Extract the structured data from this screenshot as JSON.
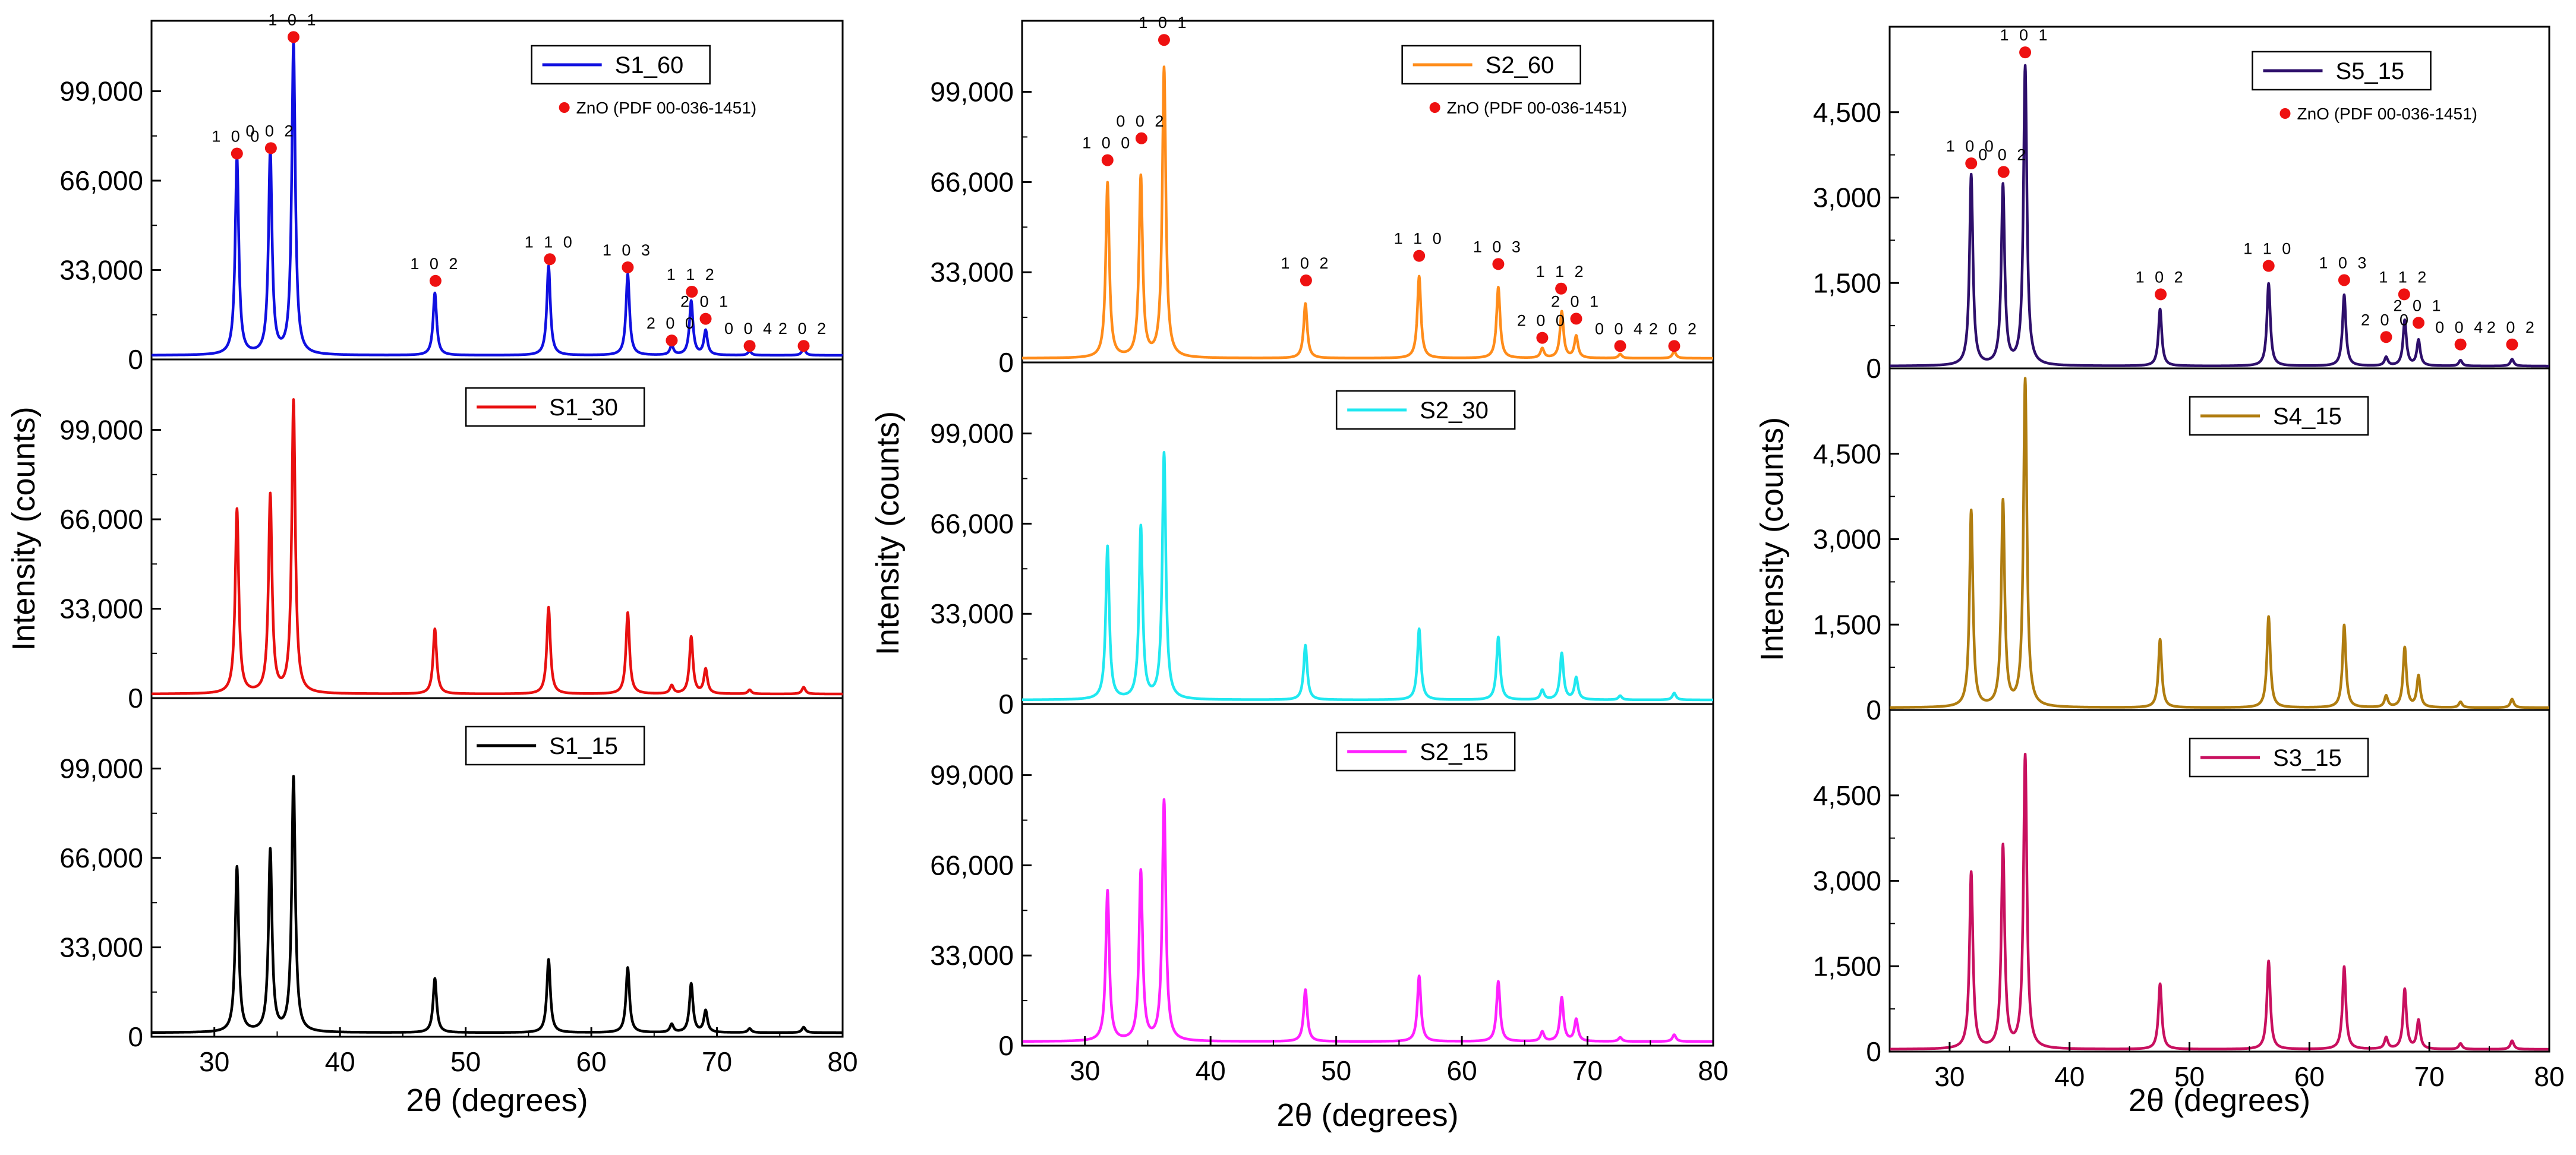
{
  "figure": {
    "x_axis_title": "2θ (degrees)",
    "y_axis_title": "Intensity (counts)",
    "reference_label": "ZnO (PDF 00-036-1451)"
  },
  "chart_data": [
    {
      "id": "column-1",
      "type": "line",
      "xlim": [
        25,
        80
      ],
      "xticks": [
        30,
        40,
        50,
        60,
        70,
        80
      ],
      "xlabel": "2θ (degrees)",
      "ylabel": "Intensity (counts)",
      "panels": [
        {
          "sample": "S1_60",
          "color": "#1010e0",
          "ylim": [
            0,
            125000
          ],
          "yticks": [
            0,
            33000,
            66000,
            99000
          ],
          "ytick_labels": [
            "0",
            "33,000",
            "66,000",
            "99,000"
          ],
          "baseline": 1500,
          "peaks": [
            [
              31.8,
              73000
            ],
            [
              34.45,
              75000
            ],
            [
              36.3,
              115000
            ],
            [
              47.55,
              23000
            ],
            [
              56.6,
              33000
            ],
            [
              62.9,
              30000
            ],
            [
              66.4,
              3500
            ],
            [
              67.95,
              20000
            ],
            [
              69.1,
              9000
            ],
            [
              72.6,
              1500
            ],
            [
              76.9,
              2500
            ]
          ],
          "legend_position": "top-right",
          "reflections": [
            {
              "hkl": "1 0 0",
              "x": 31.8,
              "y": 76000
            },
            {
              "hkl": "0 0 2",
              "x": 34.5,
              "y": 78000
            },
            {
              "hkl": "1 0 1",
              "x": 36.3,
              "y": 119000
            },
            {
              "hkl": "1 0 2",
              "x": 47.6,
              "y": 29000
            },
            {
              "hkl": "1 1 0",
              "x": 56.7,
              "y": 37000
            },
            {
              "hkl": "1 0 3",
              "x": 62.9,
              "y": 34000
            },
            {
              "hkl": "2 0 0",
              "x": 66.4,
              "y": 7000
            },
            {
              "hkl": "1 1 2",
              "x": 68.0,
              "y": 25000
            },
            {
              "hkl": "2 0 1",
              "x": 69.1,
              "y": 15000
            },
            {
              "hkl": "0 0 4",
              "x": 72.6,
              "y": 5000
            },
            {
              "hkl": "2 0 2",
              "x": 76.9,
              "y": 5000
            }
          ]
        },
        {
          "sample": "S1_30",
          "color": "#e81010",
          "ylim": [
            0,
            125000
          ],
          "yticks": [
            0,
            33000,
            66000,
            99000
          ],
          "ytick_labels": [
            "0",
            "33,000",
            "66,000",
            "99,000"
          ],
          "baseline": 1500,
          "peaks": [
            [
              31.8,
              68000
            ],
            [
              34.45,
              73000
            ],
            [
              36.3,
              108000
            ],
            [
              47.55,
              24000
            ],
            [
              56.6,
              32000
            ],
            [
              62.9,
              30000
            ],
            [
              66.4,
              3000
            ],
            [
              67.95,
              21000
            ],
            [
              69.1,
              9000
            ],
            [
              72.6,
              1500
            ],
            [
              76.9,
              2500
            ]
          ],
          "legend_position": "top-center"
        },
        {
          "sample": "S1_15",
          "color": "#000000",
          "ylim": [
            0,
            125000
          ],
          "yticks": [
            0,
            33000,
            66000,
            99000
          ],
          "ytick_labels": [
            "0",
            "33,000",
            "66,000",
            "99,000"
          ],
          "baseline": 1500,
          "peaks": [
            [
              31.8,
              61000
            ],
            [
              34.45,
              67000
            ],
            [
              36.3,
              94000
            ],
            [
              47.55,
              20000
            ],
            [
              56.6,
              27000
            ],
            [
              62.9,
              24000
            ],
            [
              66.4,
              3000
            ],
            [
              67.95,
              18000
            ],
            [
              69.1,
              8000
            ],
            [
              72.6,
              1500
            ],
            [
              76.9,
              2000
            ]
          ],
          "legend_position": "top-center"
        }
      ]
    },
    {
      "id": "column-2",
      "type": "line",
      "xlim": [
        25,
        80
      ],
      "xticks": [
        30,
        40,
        50,
        60,
        70,
        80
      ],
      "xlabel": "2θ (degrees)",
      "ylabel": "Intensity (counts)",
      "panels": [
        {
          "sample": "S2_60",
          "color": "#ff8c1a",
          "ylim": [
            0,
            125000
          ],
          "yticks": [
            0,
            33000,
            66000,
            99000
          ],
          "ytick_labels": [
            "0",
            "33,000",
            "66,000",
            "99,000"
          ],
          "baseline": 1500,
          "peaks": [
            [
              31.8,
              64000
            ],
            [
              34.45,
              66000
            ],
            [
              36.3,
              106000
            ],
            [
              47.55,
              20000
            ],
            [
              56.6,
              30000
            ],
            [
              62.9,
              26000
            ],
            [
              66.4,
              3500
            ],
            [
              67.95,
              17000
            ],
            [
              69.1,
              8000
            ],
            [
              72.6,
              1500
            ],
            [
              76.9,
              2500
            ]
          ],
          "legend_position": "top-right",
          "reflections": [
            {
              "hkl": "1 0 0",
              "x": 31.8,
              "y": 74000
            },
            {
              "hkl": "0 0 2",
              "x": 34.5,
              "y": 82000
            },
            {
              "hkl": "1 0 1",
              "x": 36.3,
              "y": 118000
            },
            {
              "hkl": "1 0 2",
              "x": 47.6,
              "y": 30000
            },
            {
              "hkl": "1 1 0",
              "x": 56.6,
              "y": 39000
            },
            {
              "hkl": "1 0 3",
              "x": 62.9,
              "y": 36000
            },
            {
              "hkl": "2 0 0",
              "x": 66.4,
              "y": 9000
            },
            {
              "hkl": "1 1 2",
              "x": 67.9,
              "y": 27000
            },
            {
              "hkl": "2 0 1",
              "x": 69.1,
              "y": 16000
            },
            {
              "hkl": "0 0 4",
              "x": 72.6,
              "y": 6000
            },
            {
              "hkl": "2 0 2",
              "x": 76.9,
              "y": 6000
            }
          ]
        },
        {
          "sample": "S2_30",
          "color": "#20e8f0",
          "ylim": [
            0,
            125000
          ],
          "yticks": [
            0,
            33000,
            66000,
            99000
          ],
          "ytick_labels": [
            "0",
            "33,000",
            "66,000",
            "99,000"
          ],
          "baseline": 1500,
          "peaks": [
            [
              31.8,
              56000
            ],
            [
              34.45,
              63000
            ],
            [
              36.3,
              90000
            ],
            [
              47.55,
              20000
            ],
            [
              56.6,
              26000
            ],
            [
              62.9,
              23000
            ],
            [
              66.4,
              3500
            ],
            [
              67.95,
              17000
            ],
            [
              69.1,
              8000
            ],
            [
              72.6,
              1500
            ],
            [
              76.9,
              2500
            ]
          ],
          "legend_position": "top-center"
        },
        {
          "sample": "S2_15",
          "color": "#ff20ff",
          "ylim": [
            0,
            125000
          ],
          "yticks": [
            0,
            33000,
            66000,
            99000
          ],
          "ytick_labels": [
            "0",
            "33,000",
            "66,000",
            "99,000"
          ],
          "baseline": 1500,
          "peaks": [
            [
              31.8,
              55000
            ],
            [
              34.45,
              62000
            ],
            [
              36.3,
              88000
            ],
            [
              47.55,
              19000
            ],
            [
              56.6,
              24000
            ],
            [
              62.9,
              22000
            ],
            [
              66.4,
              3500
            ],
            [
              67.95,
              16000
            ],
            [
              69.1,
              8000
            ],
            [
              72.6,
              1500
            ],
            [
              76.9,
              2500
            ]
          ],
          "legend_position": "top-center"
        }
      ]
    },
    {
      "id": "column-3",
      "type": "line",
      "xlim": [
        25,
        80
      ],
      "xticks": [
        30,
        40,
        50,
        60,
        70,
        80
      ],
      "xlabel": "2θ (degrees)",
      "ylabel": "Intensity (counts)",
      "panels": [
        {
          "sample": "S5_15",
          "color": "#2e0f6b",
          "ylim": [
            0,
            6000
          ],
          "yticks": [
            0,
            1500,
            3000,
            4500
          ],
          "ytick_labels": [
            "0",
            "1,500",
            "3,000",
            "4,500"
          ],
          "baseline": 40,
          "peaks": [
            [
              31.8,
              3350
            ],
            [
              34.45,
              3150
            ],
            [
              36.3,
              5250
            ],
            [
              47.55,
              1000
            ],
            [
              56.6,
              1450
            ],
            [
              62.9,
              1250
            ],
            [
              66.4,
              150
            ],
            [
              67.95,
              800
            ],
            [
              69.1,
              450
            ],
            [
              72.6,
              100
            ],
            [
              76.9,
              120
            ]
          ],
          "legend_position": "top-right",
          "reflections": [
            {
              "hkl": "1 0 0",
              "x": 31.8,
              "y": 3600
            },
            {
              "hkl": "0 0 2",
              "x": 34.5,
              "y": 3450
            },
            {
              "hkl": "1 0 1",
              "x": 36.3,
              "y": 5550
            },
            {
              "hkl": "1 0 2",
              "x": 47.6,
              "y": 1300
            },
            {
              "hkl": "1 1 0",
              "x": 56.6,
              "y": 1800
            },
            {
              "hkl": "1 0 3",
              "x": 62.9,
              "y": 1550
            },
            {
              "hkl": "2 0 0",
              "x": 66.4,
              "y": 550
            },
            {
              "hkl": "1 1 2",
              "x": 67.9,
              "y": 1300
            },
            {
              "hkl": "2 0 1",
              "x": 69.1,
              "y": 800
            },
            {
              "hkl": "0 0 4",
              "x": 72.6,
              "y": 420
            },
            {
              "hkl": "2 0 2",
              "x": 76.9,
              "y": 420
            }
          ]
        },
        {
          "sample": "S4_15",
          "color": "#b07d10",
          "ylim": [
            0,
            6000
          ],
          "yticks": [
            0,
            1500,
            3000,
            4500
          ],
          "ytick_labels": [
            "0",
            "1,500",
            "3,000",
            "4,500"
          ],
          "baseline": 40,
          "peaks": [
            [
              31.8,
              3450
            ],
            [
              34.45,
              3600
            ],
            [
              36.3,
              5750
            ],
            [
              47.55,
              1200
            ],
            [
              56.6,
              1600
            ],
            [
              62.9,
              1450
            ],
            [
              66.4,
              200
            ],
            [
              67.95,
              1050
            ],
            [
              69.1,
              550
            ],
            [
              72.6,
              100
            ],
            [
              76.9,
              150
            ]
          ],
          "legend_position": "top-center"
        },
        {
          "sample": "S3_15",
          "color": "#c8105f",
          "ylim": [
            0,
            6000
          ],
          "yticks": [
            0,
            1500,
            3000,
            4500
          ],
          "ytick_labels": [
            "0",
            "1,500",
            "3,000",
            "4,500"
          ],
          "baseline": 40,
          "peaks": [
            [
              31.8,
              3100
            ],
            [
              34.45,
              3550
            ],
            [
              36.3,
              5150
            ],
            [
              47.55,
              1150
            ],
            [
              56.6,
              1550
            ],
            [
              62.9,
              1450
            ],
            [
              66.4,
              200
            ],
            [
              67.95,
              1050
            ],
            [
              69.1,
              500
            ],
            [
              72.6,
              100
            ],
            [
              76.9,
              150
            ]
          ],
          "legend_position": "top-center"
        }
      ]
    }
  ]
}
